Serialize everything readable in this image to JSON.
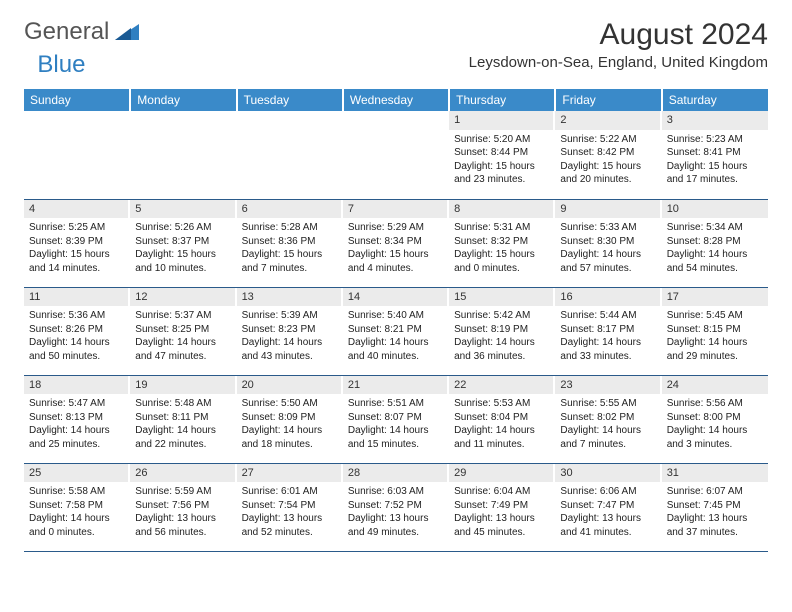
{
  "logo": {
    "text1": "General",
    "text2": "Blue"
  },
  "title": "August 2024",
  "location": "Leysdown-on-Sea, England, United Kingdom",
  "colors": {
    "header_bg": "#3a8ac9",
    "header_text": "#ffffff",
    "daynum_bg": "#ebebeb",
    "border": "#2a5a8a",
    "logo_blue": "#2f7fc1"
  },
  "fonts": {
    "title_size": 30,
    "location_size": 15,
    "th_size": 12,
    "cell_size": 10
  },
  "weekdays": [
    "Sunday",
    "Monday",
    "Tuesday",
    "Wednesday",
    "Thursday",
    "Friday",
    "Saturday"
  ],
  "grid": {
    "rows": 5,
    "cols": 7,
    "first_weekday_index": 4,
    "days_in_month": 31
  },
  "days": {
    "1": {
      "sunrise": "5:20 AM",
      "sunset": "8:44 PM",
      "daylight": "15 hours and 23 minutes."
    },
    "2": {
      "sunrise": "5:22 AM",
      "sunset": "8:42 PM",
      "daylight": "15 hours and 20 minutes."
    },
    "3": {
      "sunrise": "5:23 AM",
      "sunset": "8:41 PM",
      "daylight": "15 hours and 17 minutes."
    },
    "4": {
      "sunrise": "5:25 AM",
      "sunset": "8:39 PM",
      "daylight": "15 hours and 14 minutes."
    },
    "5": {
      "sunrise": "5:26 AM",
      "sunset": "8:37 PM",
      "daylight": "15 hours and 10 minutes."
    },
    "6": {
      "sunrise": "5:28 AM",
      "sunset": "8:36 PM",
      "daylight": "15 hours and 7 minutes."
    },
    "7": {
      "sunrise": "5:29 AM",
      "sunset": "8:34 PM",
      "daylight": "15 hours and 4 minutes."
    },
    "8": {
      "sunrise": "5:31 AM",
      "sunset": "8:32 PM",
      "daylight": "15 hours and 0 minutes."
    },
    "9": {
      "sunrise": "5:33 AM",
      "sunset": "8:30 PM",
      "daylight": "14 hours and 57 minutes."
    },
    "10": {
      "sunrise": "5:34 AM",
      "sunset": "8:28 PM",
      "daylight": "14 hours and 54 minutes."
    },
    "11": {
      "sunrise": "5:36 AM",
      "sunset": "8:26 PM",
      "daylight": "14 hours and 50 minutes."
    },
    "12": {
      "sunrise": "5:37 AM",
      "sunset": "8:25 PM",
      "daylight": "14 hours and 47 minutes."
    },
    "13": {
      "sunrise": "5:39 AM",
      "sunset": "8:23 PM",
      "daylight": "14 hours and 43 minutes."
    },
    "14": {
      "sunrise": "5:40 AM",
      "sunset": "8:21 PM",
      "daylight": "14 hours and 40 minutes."
    },
    "15": {
      "sunrise": "5:42 AM",
      "sunset": "8:19 PM",
      "daylight": "14 hours and 36 minutes."
    },
    "16": {
      "sunrise": "5:44 AM",
      "sunset": "8:17 PM",
      "daylight": "14 hours and 33 minutes."
    },
    "17": {
      "sunrise": "5:45 AM",
      "sunset": "8:15 PM",
      "daylight": "14 hours and 29 minutes."
    },
    "18": {
      "sunrise": "5:47 AM",
      "sunset": "8:13 PM",
      "daylight": "14 hours and 25 minutes."
    },
    "19": {
      "sunrise": "5:48 AM",
      "sunset": "8:11 PM",
      "daylight": "14 hours and 22 minutes."
    },
    "20": {
      "sunrise": "5:50 AM",
      "sunset": "8:09 PM",
      "daylight": "14 hours and 18 minutes."
    },
    "21": {
      "sunrise": "5:51 AM",
      "sunset": "8:07 PM",
      "daylight": "14 hours and 15 minutes."
    },
    "22": {
      "sunrise": "5:53 AM",
      "sunset": "8:04 PM",
      "daylight": "14 hours and 11 minutes."
    },
    "23": {
      "sunrise": "5:55 AM",
      "sunset": "8:02 PM",
      "daylight": "14 hours and 7 minutes."
    },
    "24": {
      "sunrise": "5:56 AM",
      "sunset": "8:00 PM",
      "daylight": "14 hours and 3 minutes."
    },
    "25": {
      "sunrise": "5:58 AM",
      "sunset": "7:58 PM",
      "daylight": "14 hours and 0 minutes."
    },
    "26": {
      "sunrise": "5:59 AM",
      "sunset": "7:56 PM",
      "daylight": "13 hours and 56 minutes."
    },
    "27": {
      "sunrise": "6:01 AM",
      "sunset": "7:54 PM",
      "daylight": "13 hours and 52 minutes."
    },
    "28": {
      "sunrise": "6:03 AM",
      "sunset": "7:52 PM",
      "daylight": "13 hours and 49 minutes."
    },
    "29": {
      "sunrise": "6:04 AM",
      "sunset": "7:49 PM",
      "daylight": "13 hours and 45 minutes."
    },
    "30": {
      "sunrise": "6:06 AM",
      "sunset": "7:47 PM",
      "daylight": "13 hours and 41 minutes."
    },
    "31": {
      "sunrise": "6:07 AM",
      "sunset": "7:45 PM",
      "daylight": "13 hours and 37 minutes."
    }
  },
  "labels": {
    "sunrise": "Sunrise:",
    "sunset": "Sunset:",
    "daylight": "Daylight:"
  }
}
